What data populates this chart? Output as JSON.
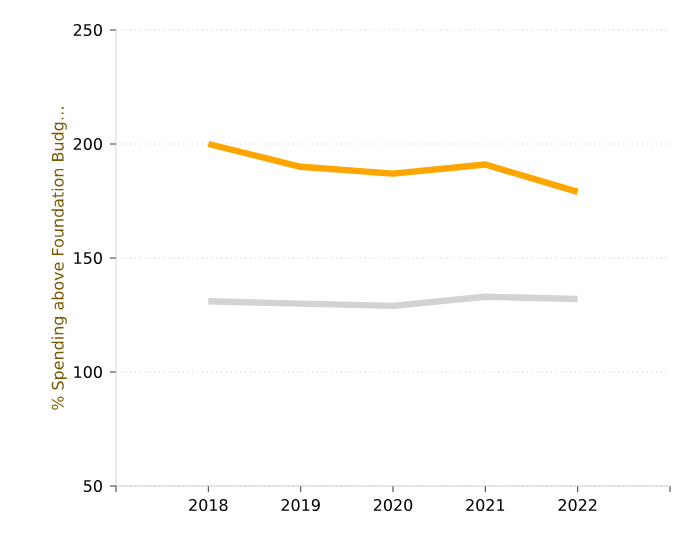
{
  "chart_data": {
    "type": "line",
    "ylabel": "% Spending above Foundation Budg…",
    "x": [
      2018,
      2019,
      2020,
      2021,
      2022
    ],
    "series": [
      {
        "color": "#ffa500",
        "values": [
          200,
          190,
          187,
          191,
          179
        ]
      },
      {
        "color": "#d3d3d3",
        "values": [
          131,
          130,
          129,
          133,
          132
        ]
      }
    ],
    "xlim": [
      2017,
      2023
    ],
    "xticks": [
      {
        "value": 2017,
        "label": null
      },
      2018,
      2019,
      2020,
      2021,
      2022,
      {
        "value": 2023,
        "label": null
      }
    ],
    "ylim": [
      50,
      250
    ],
    "yticks": [
      50,
      100,
      150,
      200,
      250
    ],
    "grid": "y",
    "marker": "none",
    "line_style": "solid"
  }
}
